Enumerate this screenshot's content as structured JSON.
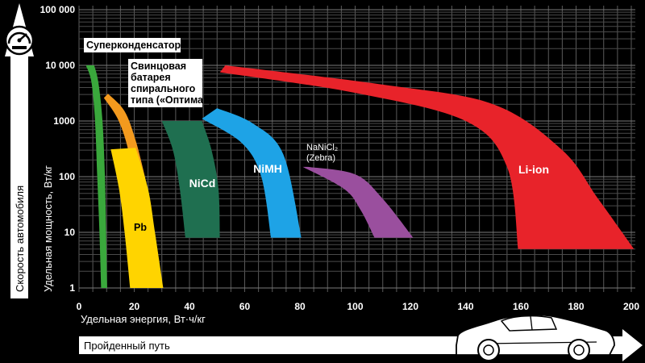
{
  "chart_data": {
    "type": "area",
    "xlabel": "Удельная энергия, Вт·ч/кг",
    "ylabel": "Удельная мощность, Вт/кг",
    "xlim": [
      0,
      200
    ],
    "ylim": [
      1,
      100000
    ],
    "yscale": "log",
    "grid": true,
    "x_ticks": [
      "0",
      "20",
      "40",
      "60",
      "80",
      "100",
      "120",
      "140",
      "160",
      "180",
      "200"
    ],
    "y_ticks": [
      "1",
      "10",
      "100",
      "1000",
      "10 000",
      "100 000"
    ],
    "series": [
      {
        "name": "Суперконденсатор",
        "label_lines": [
          "Суперконденсатор"
        ],
        "color": "#3aa83c",
        "shape": "band",
        "outer": [
          [
            2.5,
            10000
          ],
          [
            4.5,
            5000
          ],
          [
            5.8,
            1000
          ],
          [
            6.6,
            100
          ],
          [
            7.4,
            10
          ],
          [
            8.0,
            1
          ]
        ],
        "inner": [
          [
            5.5,
            10000
          ],
          [
            7.0,
            5000
          ],
          [
            8.5,
            1000
          ],
          [
            9.4,
            100
          ],
          [
            9.8,
            10
          ],
          [
            10.2,
            1
          ]
        ]
      },
      {
        "name": "Свинцовая батарея спирального типа («Оптима»)",
        "label_lines": [
          "Свинцовая",
          "батарея",
          "спирального",
          "типа («Оптима»)"
        ],
        "color": "#f39a1e",
        "shape": "band",
        "outer": [
          [
            9,
            2600
          ],
          [
            14,
            1100
          ],
          [
            17.5,
            350
          ],
          [
            19.5,
            90
          ]
        ],
        "inner": [
          [
            10.5,
            3100
          ],
          [
            16.5,
            1500
          ],
          [
            20.5,
            450
          ],
          [
            24,
            95
          ]
        ]
      },
      {
        "name": "Pb",
        "label_lines": [
          "Pb"
        ],
        "color": "#ffd400",
        "shape": "band",
        "outer": [
          [
            11.5,
            310
          ],
          [
            14.5,
            60
          ],
          [
            16.5,
            10
          ],
          [
            18.5,
            1
          ]
        ],
        "inner": [
          [
            20.5,
            330
          ],
          [
            25,
            60
          ],
          [
            27.5,
            10
          ],
          [
            30.5,
            1
          ]
        ]
      },
      {
        "name": "NiCd",
        "label_lines": [
          "NiCd"
        ],
        "color": "#1f6f50",
        "shape": "band",
        "outer": [
          [
            30,
            1000
          ],
          [
            34,
            300
          ],
          [
            36.5,
            60
          ],
          [
            38.5,
            8
          ]
        ],
        "inner": [
          [
            44.5,
            1000
          ],
          [
            48,
            300
          ],
          [
            50.5,
            60
          ],
          [
            51,
            8
          ]
        ]
      },
      {
        "name": "NiMH",
        "label_lines": [
          "NiMH"
        ],
        "color": "#1ea3e6",
        "shape": "band",
        "outer": [
          [
            44.5,
            1100
          ],
          [
            59,
            400
          ],
          [
            66,
            100
          ],
          [
            69.5,
            8
          ]
        ],
        "inner": [
          [
            50,
            1700
          ],
          [
            63,
            900
          ],
          [
            74,
            250
          ],
          [
            80.5,
            8
          ]
        ]
      },
      {
        "name": "NaNiCl₂ (Zebra)",
        "label_lines": [
          "NaNiCl₂",
          "(Zebra)"
        ],
        "color": "#9a4f9e",
        "shape": "band",
        "outer": [
          [
            81,
            150
          ],
          [
            96,
            60
          ],
          [
            102,
            25
          ],
          [
            107,
            8
          ]
        ],
        "inner": [
          [
            83,
            150
          ],
          [
            100,
            110
          ],
          [
            110,
            40
          ],
          [
            121,
            8
          ]
        ]
      },
      {
        "name": "Li-ion",
        "label_lines": [
          "Li-ion"
        ],
        "color": "#e8232a",
        "shape": "band",
        "outer": [
          [
            51,
            7500
          ],
          [
            100,
            3200
          ],
          [
            140,
            1000
          ],
          [
            155,
            150
          ],
          [
            159,
            5
          ]
        ],
        "inner": [
          [
            53,
            10000
          ],
          [
            110,
            4500
          ],
          [
            150,
            2000
          ],
          [
            175,
            300
          ],
          [
            188,
            40
          ],
          [
            201,
            5
          ]
        ]
      }
    ]
  },
  "side": {
    "vertical_label": "Скорость автомобиля",
    "horizontal_label": "Пройденный путь",
    "icon": "speedometer-icon",
    "car_icon": "car-icon"
  }
}
